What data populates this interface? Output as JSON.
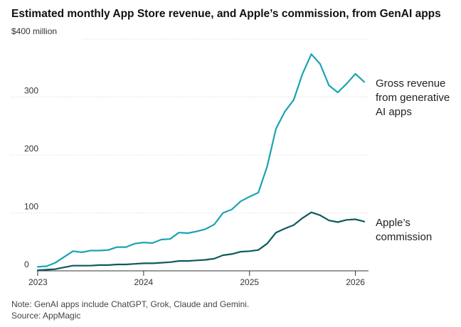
{
  "chart_data": {
    "type": "line",
    "title": "Estimated monthly App Store revenue, and Apple’s commission, from GenAI apps",
    "y_unit_label": "$400 million",
    "ylim": [
      0,
      400
    ],
    "yticks": [
      0,
      100,
      200,
      300
    ],
    "ytick_labels": [
      "0",
      "100",
      "200",
      "300"
    ],
    "xticks": [
      {
        "label": "2023",
        "month_index": 0
      },
      {
        "label": "2024",
        "month_index": 12
      },
      {
        "label": "2025",
        "month_index": 24
      },
      {
        "label": "2026",
        "month_index": 36
      }
    ],
    "x": [
      "Jan 2023",
      "Feb 2023",
      "Mar 2023",
      "Apr 2023",
      "May 2023",
      "Jun 2023",
      "Jul 2023",
      "Aug 2023",
      "Sep 2023",
      "Oct 2023",
      "Nov 2023",
      "Dec 2023",
      "Jan 2024",
      "Feb 2024",
      "Mar 2024",
      "Apr 2024",
      "May 2024",
      "Jun 2024",
      "Jul 2024",
      "Aug 2024",
      "Sep 2024",
      "Oct 2024",
      "Nov 2024",
      "Dec 2024",
      "Jan 2025",
      "Feb 2025",
      "Mar 2025",
      "Apr 2025",
      "May 2025",
      "Jun 2025",
      "Jul 2025",
      "Aug 2025",
      "Sep 2025",
      "Oct 2025",
      "Nov 2025",
      "Dec 2025",
      "Jan 2026",
      "Feb 2026"
    ],
    "series": [
      {
        "name": "Gross revenue from generative AI apps",
        "label_lines": [
          "Gross revenue",
          "from generative",
          "AI apps"
        ],
        "color": "#1aa3b3",
        "values": [
          7,
          8,
          14,
          24,
          34,
          32,
          35,
          35,
          36,
          41,
          41,
          47,
          49,
          48,
          54,
          55,
          66,
          65,
          68,
          72,
          80,
          100,
          106,
          120,
          128,
          135,
          180,
          245,
          275,
          295,
          340,
          374,
          357,
          320,
          308,
          323,
          340,
          326
        ]
      },
      {
        "name": "Apple’s commission",
        "label_lines": [
          "Apple’s",
          "commission"
        ],
        "color": "#0e5a5c",
        "values": [
          1,
          2,
          3,
          6,
          9,
          9,
          9,
          10,
          10,
          11,
          11,
          12,
          13,
          13,
          14,
          15,
          17,
          17,
          18,
          19,
          21,
          27,
          29,
          33,
          34,
          36,
          47,
          66,
          73,
          79,
          91,
          101,
          96,
          87,
          84,
          88,
          89,
          85
        ]
      }
    ],
    "note": "Note: GenAI apps include ChatGPT, Grok, Claude and Gemini.",
    "source": "Source: AppMagic"
  }
}
